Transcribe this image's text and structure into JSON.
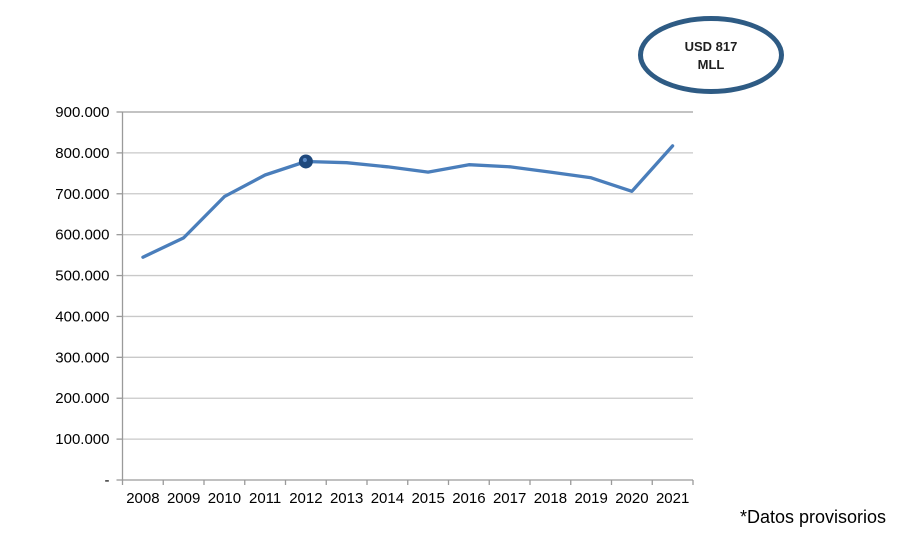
{
  "annotation": {
    "line1": "USD 817",
    "line2": "MLL"
  },
  "footnote": "*Datos provisorios",
  "colors": {
    "line": "#4a7ebb",
    "marker": "#1f497d",
    "marker_highlight": "#5a8ac6",
    "ellipse": "#2e5b84",
    "gridline": "#c9c9c9",
    "gridline_top": "#9f9f9f",
    "axis": "#9a9a9a",
    "text": "#000000"
  },
  "chart_data": {
    "type": "line",
    "categories": [
      "2008",
      "2009",
      "2010",
      "2011",
      "2012",
      "2013",
      "2014",
      "2015",
      "2016",
      "2017",
      "2018",
      "2019",
      "2020",
      "2021"
    ],
    "values": [
      545000,
      592000,
      693000,
      746000,
      779000,
      776000,
      766000,
      753000,
      771000,
      766000,
      753000,
      739000,
      706000,
      817000
    ],
    "marker_index": 4,
    "title": "",
    "xlabel": "",
    "ylabel": "",
    "ylim": [
      0,
      900000
    ],
    "y_tick_step": 100000,
    "y_tick_labels": [
      "-",
      "100.000",
      "200.000",
      "300.000",
      "400.000",
      "500.000",
      "600.000",
      "700.000",
      "800.000",
      "900.000"
    ],
    "grid": true,
    "legend": false
  }
}
